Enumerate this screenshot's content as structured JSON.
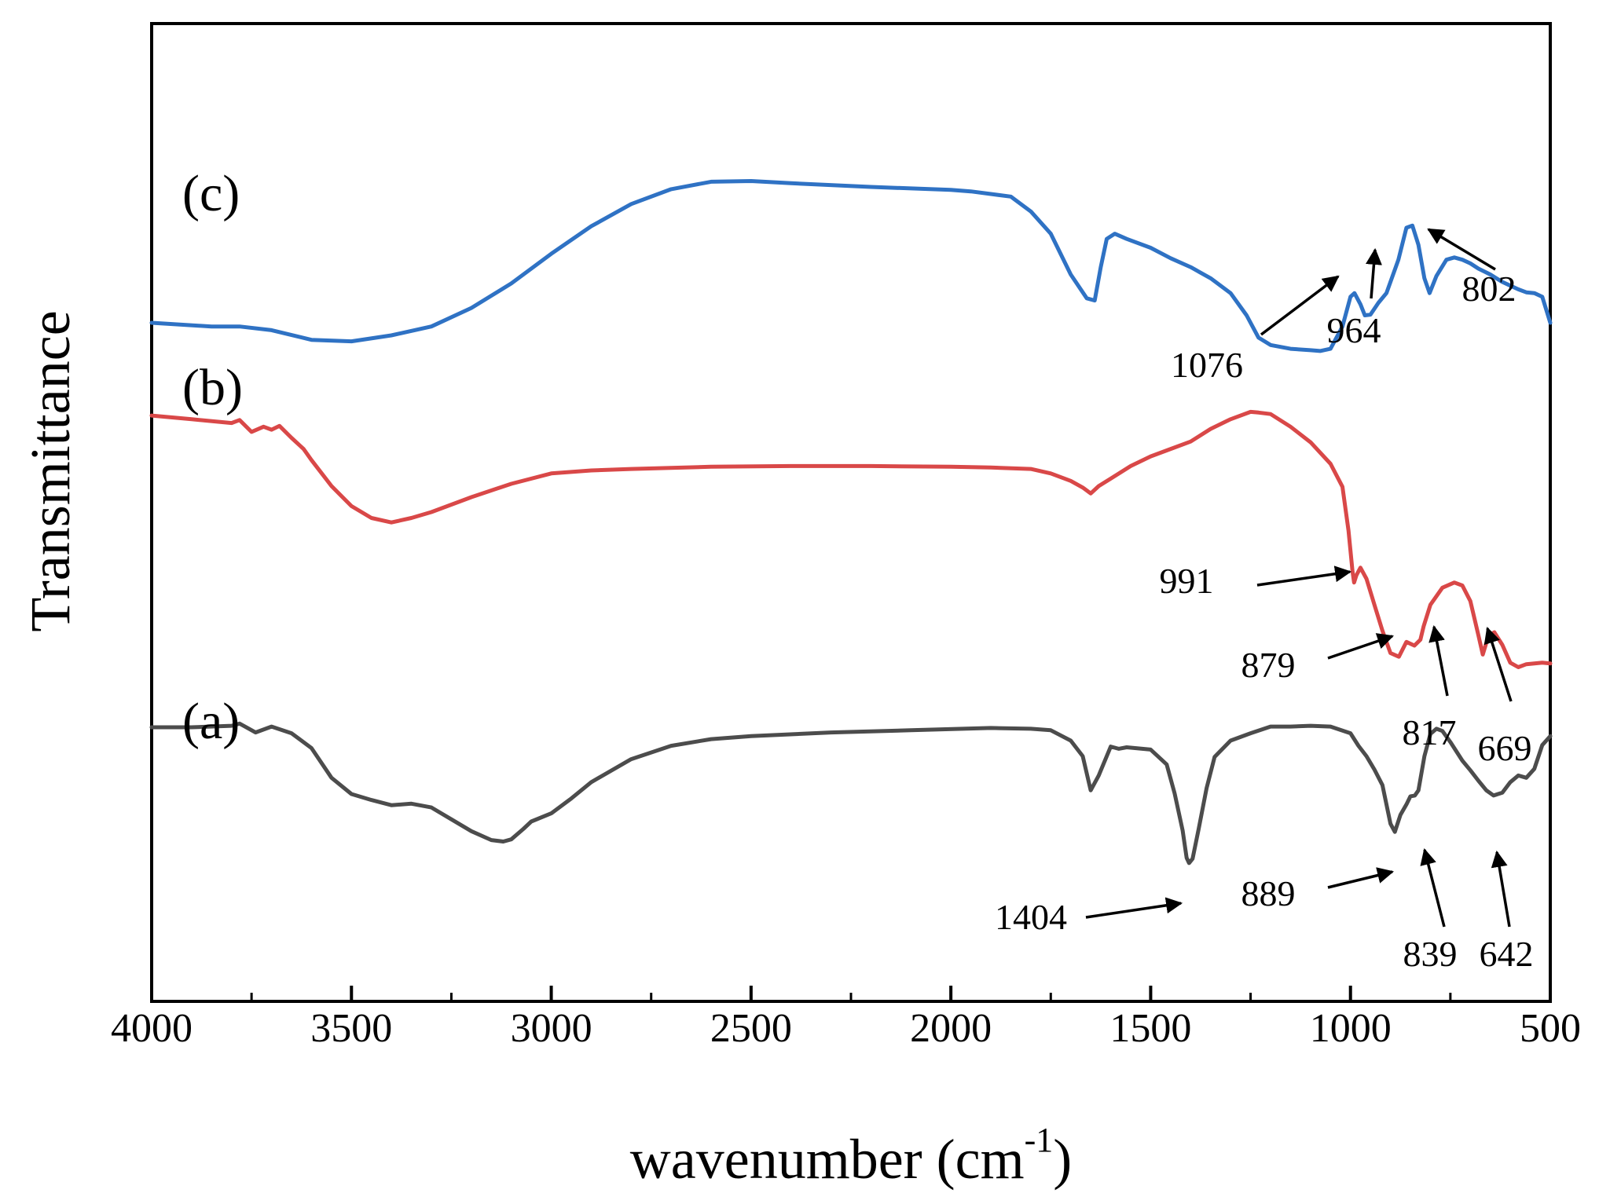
{
  "chart_data": {
    "type": "line",
    "title": "",
    "xlabel": "wavenumber (cm",
    "xlabel_sup": "-1",
    "xlabel_close": ")",
    "ylabel": "Transmittance",
    "xlim": [
      4000,
      500
    ],
    "ylim": [
      0,
      100
    ],
    "x_reversed": true,
    "grid": false,
    "y_ticks_shown": false,
    "x_ticks": [
      "4000",
      "3500",
      "3000",
      "2500",
      "2000",
      "1500",
      "1000",
      "500"
    ],
    "x_tick_values": [
      4000,
      3500,
      3000,
      2500,
      2000,
      1500,
      1000,
      500
    ],
    "series": [
      {
        "name": "(c)",
        "color": "#2f72c4",
        "x": [
          4000,
          3850,
          3780,
          3700,
          3600,
          3500,
          3400,
          3300,
          3200,
          3100,
          3000,
          2900,
          2800,
          2700,
          2600,
          2500,
          2400,
          2200,
          2000,
          1950,
          1850,
          1800,
          1750,
          1700,
          1660,
          1640,
          1625,
          1610,
          1590,
          1560,
          1500,
          1450,
          1400,
          1350,
          1300,
          1260,
          1230,
          1200,
          1150,
          1100,
          1076,
          1050,
          1020,
          1000,
          990,
          975,
          964,
          950,
          930,
          910,
          880,
          860,
          845,
          830,
          815,
          802,
          785,
          760,
          740,
          720,
          700,
          680,
          650,
          620,
          600,
          580,
          560,
          540,
          520,
          500
        ],
        "y": [
          74.5,
          74,
          74,
          73.5,
          72.2,
          72,
          72.8,
          74,
          76.5,
          79.8,
          83.8,
          87.5,
          90.5,
          92.5,
          93.5,
          93.6,
          93.3,
          92.8,
          92.4,
          92.2,
          91.5,
          89.5,
          86.5,
          81,
          77.8,
          77.5,
          82,
          85.8,
          86.5,
          85.8,
          84.6,
          83.2,
          82,
          80.5,
          78.5,
          75.5,
          72.5,
          71.5,
          71,
          70.8,
          70.7,
          71,
          74,
          78,
          78.5,
          77,
          75.5,
          75.6,
          77.2,
          78.5,
          83,
          87.3,
          87.6,
          85,
          80.5,
          78.5,
          80.8,
          83,
          83.3,
          83,
          82.5,
          81.8,
          81,
          80,
          79.5,
          79,
          78.6,
          78.5,
          78,
          74.5
        ]
      },
      {
        "name": "(b)",
        "color": "#d94848",
        "x": [
          4000,
          3900,
          3800,
          3780,
          3750,
          3720,
          3700,
          3680,
          3650,
          3620,
          3600,
          3550,
          3500,
          3450,
          3400,
          3350,
          3300,
          3200,
          3100,
          3000,
          2900,
          2800,
          2600,
          2400,
          2200,
          2000,
          1900,
          1800,
          1750,
          1700,
          1670,
          1650,
          1630,
          1600,
          1550,
          1500,
          1450,
          1400,
          1350,
          1300,
          1250,
          1230,
          1200,
          1150,
          1100,
          1050,
          1020,
          1005,
          995,
          991,
          985,
          975,
          960,
          940,
          920,
          900,
          879,
          860,
          840,
          825,
          817,
          800,
          770,
          740,
          720,
          700,
          690,
          680,
          669,
          655,
          640,
          620,
          600,
          580,
          560,
          540,
          520,
          500
        ],
        "y": [
          62,
          61.5,
          61,
          61.4,
          59.8,
          60.5,
          60.1,
          60.6,
          59,
          57.5,
          56,
          52.5,
          49.8,
          48.2,
          47.6,
          48.2,
          49,
          51,
          52.8,
          54.2,
          54.6,
          54.8,
          55.1,
          55.2,
          55.2,
          55.1,
          55,
          54.8,
          54.2,
          53.2,
          52.3,
          51.5,
          52.5,
          53.5,
          55.2,
          56.5,
          57.5,
          58.5,
          60.2,
          61.5,
          62.5,
          62.4,
          62.2,
          60.5,
          58.4,
          55.5,
          52.4,
          46.5,
          41,
          39.5,
          40.5,
          41.5,
          40,
          36.5,
          33,
          30,
          29.5,
          31.5,
          31,
          31.8,
          33.6,
          36.5,
          38.8,
          39.5,
          39.1,
          37,
          34.7,
          32.4,
          29.8,
          32.3,
          32.8,
          31.1,
          28.7,
          28.1,
          28.5,
          28.6,
          28.7,
          28.6
        ]
      },
      {
        "name": "(a)",
        "color": "#4c4c4c",
        "x": [
          4000,
          3900,
          3800,
          3780,
          3760,
          3740,
          3700,
          3650,
          3600,
          3550,
          3500,
          3450,
          3400,
          3350,
          3300,
          3250,
          3200,
          3150,
          3120,
          3100,
          3070,
          3050,
          3000,
          2950,
          2900,
          2800,
          2700,
          2600,
          2500,
          2300,
          2100,
          1900,
          1800,
          1750,
          1700,
          1670,
          1650,
          1630,
          1600,
          1580,
          1560,
          1500,
          1460,
          1440,
          1420,
          1410,
          1404,
          1395,
          1380,
          1360,
          1340,
          1300,
          1250,
          1200,
          1150,
          1100,
          1050,
          1000,
          980,
          960,
          940,
          920,
          900,
          889,
          875,
          860,
          850,
          839,
          830,
          815,
          800,
          785,
          770,
          750,
          720,
          700,
          680,
          660,
          642,
          620,
          600,
          580,
          560,
          540,
          520,
          500
        ],
        "y": [
          20,
          20,
          20.2,
          20.5,
          19.9,
          19.3,
          20.1,
          19.2,
          17.2,
          13.2,
          11,
          10.2,
          9.5,
          9.7,
          9.2,
          7.6,
          6,
          4.8,
          4.6,
          4.9,
          6.3,
          7.3,
          8.4,
          10.4,
          12.6,
          15.7,
          17.5,
          18.4,
          18.8,
          19.3,
          19.6,
          19.9,
          19.8,
          19.6,
          18.2,
          16.1,
          11.5,
          13.5,
          17.4,
          17.1,
          17.3,
          17,
          15,
          11.1,
          6.1,
          2.4,
          1.7,
          2.3,
          6.3,
          11.8,
          16,
          18.2,
          19.2,
          20.1,
          20.1,
          20.2,
          20.1,
          19.2,
          17.5,
          16.1,
          14.3,
          12.2,
          7,
          5.9,
          8.2,
          9.6,
          10.7,
          10.8,
          11.5,
          16.1,
          19.1,
          19.8,
          19.5,
          18,
          15.5,
          14.2,
          12.8,
          11.5,
          10.8,
          11.2,
          12.6,
          13.5,
          13.2,
          14.4,
          17.6,
          18.8
        ]
      }
    ],
    "annotations": [
      {
        "text": "1076",
        "x": 1076
      },
      {
        "text": "964",
        "x": 964
      },
      {
        "text": "802",
        "x": 802
      },
      {
        "text": "991",
        "x": 991
      },
      {
        "text": "879",
        "x": 879
      },
      {
        "text": "817",
        "x": 817
      },
      {
        "text": "669",
        "x": 669
      },
      {
        "text": "1404",
        "x": 1404
      },
      {
        "text": "889",
        "x": 889
      },
      {
        "text": "839",
        "x": 839
      },
      {
        "text": "642",
        "x": 642
      }
    ]
  }
}
